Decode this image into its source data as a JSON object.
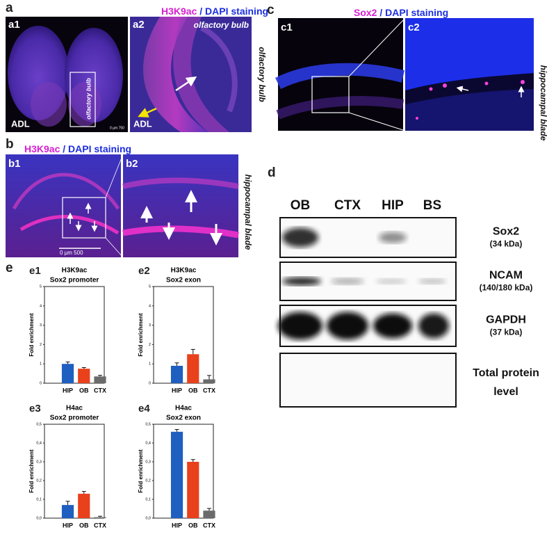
{
  "panels": {
    "a": {
      "letter": "a",
      "stain": "H3K9ac",
      "sep": " / ",
      "counter": "DAPI staining",
      "sub1": "a1",
      "sub2": "a2",
      "age1": "ADL",
      "age2": "ADL",
      "box_label": "olfactory bulb",
      "zoom_label": "olfactory bulb",
      "side_label": "olfactory bulb",
      "scale": "0    µm 750"
    },
    "b": {
      "letter": "b",
      "stain": "H3K9ac",
      "sep": " / ",
      "counter": "DAPI staining",
      "sub1": "b1",
      "sub2": "b2",
      "scale": "0         µm        500",
      "side_label": "hippocampal blade"
    },
    "c": {
      "letter": "c",
      "stain": "Sox2",
      "sep": " / ",
      "counter": "DAPI staining",
      "sub1": "c1",
      "sub2": "c2",
      "side_label": "hippocampal blade"
    },
    "d": {
      "letter": "d",
      "lanes": [
        "OB",
        "CTX",
        "HIP",
        "BS"
      ],
      "rows": [
        {
          "name": "Sox2",
          "size": "(34 kDa)"
        },
        {
          "name": "NCAM",
          "size": "(140/180 kDa)"
        },
        {
          "name": "GAPDH",
          "size": "(37 kDa)"
        },
        {
          "name": "Total protein",
          "size": "level"
        }
      ]
    },
    "e": {
      "letter": "e"
    }
  },
  "chart_data": [
    {
      "type": "bar",
      "label": "e1",
      "title": "H3K9ac",
      "subtitle": "Sox2 promoter",
      "y_label": "Fold enrichment",
      "categories": [
        "HIP",
        "OB",
        "CTX"
      ],
      "values": [
        1.0,
        0.75,
        0.35
      ],
      "errors": [
        0.1,
        0.06,
        0.06
      ],
      "colors": [
        "#1f5fc0",
        "#e8411c",
        "#6b6b6b"
      ],
      "ylim": [
        0,
        5
      ],
      "yticks": [
        0,
        1,
        2,
        3,
        4,
        5
      ]
    },
    {
      "type": "bar",
      "label": "e2",
      "title": "H3K9ac",
      "subtitle": "Sox2 exon",
      "y_label": "Fold enrichment",
      "categories": [
        "HIP",
        "OB",
        "CTX"
      ],
      "values": [
        0.9,
        1.5,
        0.2
      ],
      "errors": [
        0.15,
        0.25,
        0.2
      ],
      "colors": [
        "#1f5fc0",
        "#e8411c",
        "#6b6b6b"
      ],
      "ylim": [
        0,
        5
      ],
      "yticks": [
        0,
        1,
        2,
        3,
        4,
        5
      ]
    },
    {
      "type": "bar",
      "label": "e3",
      "title": "H4ac",
      "subtitle": "Sox2 promoter",
      "y_label": "Fold enrichment",
      "categories": [
        "HIP",
        "OB",
        "CTX"
      ],
      "values": [
        0.07,
        0.13,
        0.005
      ],
      "errors": [
        0.02,
        0.012,
        0.005
      ],
      "colors": [
        "#1f5fc0",
        "#e8411c",
        "#6b6b6b"
      ],
      "ylim": [
        0,
        0.5
      ],
      "yticks": [
        {
          "value": 0,
          "label": "0,0"
        },
        {
          "value": 0.1,
          "label": "0,1"
        },
        {
          "value": 0.2,
          "label": "0,2"
        },
        {
          "value": 0.3,
          "label": "0,3"
        },
        {
          "value": 0.4,
          "label": "0,4"
        },
        {
          "value": 0.5,
          "label": "0,5"
        }
      ]
    },
    {
      "type": "bar",
      "label": "e4",
      "title": "H4ac",
      "subtitle": "Sox2 exon",
      "y_label": "Fold enrichment",
      "categories": [
        "HIP",
        "OB",
        "CTX"
      ],
      "values": [
        0.46,
        0.3,
        0.04
      ],
      "errors": [
        0.012,
        0.012,
        0.012
      ],
      "colors": [
        "#1f5fc0",
        "#e8411c",
        "#6b6b6b"
      ],
      "ylim": [
        0,
        0.5
      ],
      "yticks": [
        {
          "value": 0,
          "label": "0,0"
        },
        {
          "value": 0.1,
          "label": "0,1"
        },
        {
          "value": 0.2,
          "label": "0,2"
        },
        {
          "value": 0.3,
          "label": "0,3"
        },
        {
          "value": 0.4,
          "label": "0,4"
        },
        {
          "value": 0.5,
          "label": "0,5"
        }
      ]
    }
  ]
}
